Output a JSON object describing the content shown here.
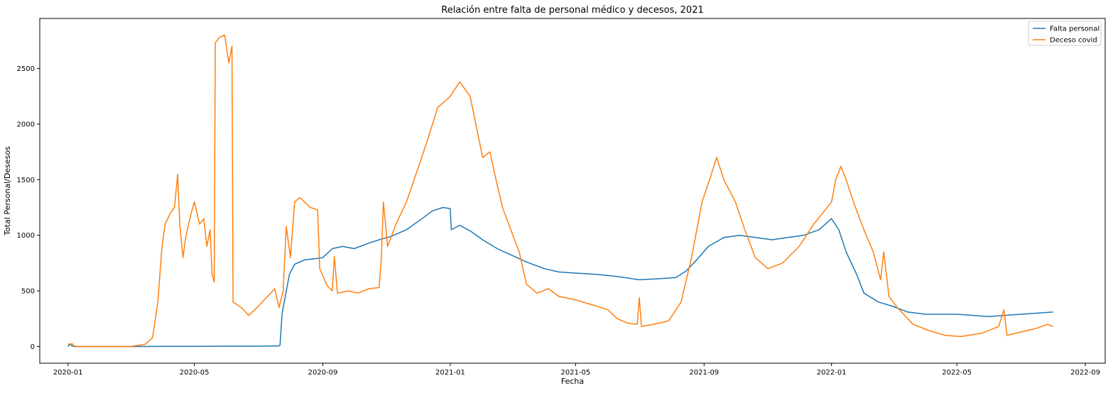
{
  "chart_data": {
    "type": "line",
    "title": "Relación entre falta de personal médico y decesos, 2021",
    "xlabel": "Fecha",
    "ylabel": "Total Personal/Desesos",
    "xlim": [
      "2019-12-05",
      "2022-09-20"
    ],
    "ylim": [
      -150,
      2950
    ],
    "x_ticks": [
      "2020-01-01",
      "2020-05-01",
      "2020-09-01",
      "2021-01-01",
      "2021-05-01",
      "2021-09-01",
      "2022-01-01",
      "2022-05-01",
      "2022-09-01"
    ],
    "x_tick_labels": [
      "2020-01",
      "2020-05",
      "2020-09",
      "2021-01",
      "2021-05",
      "2021-09",
      "2022-01",
      "2022-05",
      "2022-09"
    ],
    "y_ticks": [
      0,
      500,
      1000,
      1500,
      2000,
      2500
    ],
    "legend_position": "top-right",
    "grid": false,
    "series": [
      {
        "name": "Falta personal",
        "color": "#1f77b4",
        "points": [
          [
            "2020-01-01",
            0
          ],
          [
            "2020-01-03",
            20
          ],
          [
            "2020-01-05",
            5
          ],
          [
            "2020-01-08",
            0
          ],
          [
            "2020-02-01",
            0
          ],
          [
            "2020-03-01",
            0
          ],
          [
            "2020-04-01",
            2
          ],
          [
            "2020-05-01",
            2
          ],
          [
            "2020-06-01",
            3
          ],
          [
            "2020-07-01",
            3
          ],
          [
            "2020-07-20",
            5
          ],
          [
            "2020-07-22",
            10
          ],
          [
            "2020-07-24",
            300
          ],
          [
            "2020-07-27",
            450
          ],
          [
            "2020-07-31",
            650
          ],
          [
            "2020-08-05",
            740
          ],
          [
            "2020-08-15",
            780
          ],
          [
            "2020-08-25",
            790
          ],
          [
            "2020-09-01",
            800
          ],
          [
            "2020-09-10",
            880
          ],
          [
            "2020-09-20",
            900
          ],
          [
            "2020-10-01",
            880
          ],
          [
            "2020-10-15",
            930
          ],
          [
            "2020-10-25",
            960
          ],
          [
            "2020-11-05",
            990
          ],
          [
            "2020-11-20",
            1050
          ],
          [
            "2020-12-05",
            1150
          ],
          [
            "2020-12-15",
            1220
          ],
          [
            "2020-12-25",
            1250
          ],
          [
            "2021-01-01",
            1240
          ],
          [
            "2021-01-02",
            1050
          ],
          [
            "2021-01-10",
            1090
          ],
          [
            "2021-01-20",
            1040
          ],
          [
            "2021-02-01",
            960
          ],
          [
            "2021-02-15",
            880
          ],
          [
            "2021-03-01",
            820
          ],
          [
            "2021-03-15",
            760
          ],
          [
            "2021-04-01",
            700
          ],
          [
            "2021-04-15",
            670
          ],
          [
            "2021-05-01",
            660
          ],
          [
            "2021-05-20",
            650
          ],
          [
            "2021-06-10",
            630
          ],
          [
            "2021-07-01",
            600
          ],
          [
            "2021-07-20",
            610
          ],
          [
            "2021-08-05",
            620
          ],
          [
            "2021-08-15",
            680
          ],
          [
            "2021-08-25",
            780
          ],
          [
            "2021-09-05",
            900
          ],
          [
            "2021-09-20",
            980
          ],
          [
            "2021-10-05",
            1000
          ],
          [
            "2021-10-20",
            980
          ],
          [
            "2021-11-05",
            960
          ],
          [
            "2021-11-20",
            980
          ],
          [
            "2021-12-05",
            1000
          ],
          [
            "2021-12-20",
            1050
          ],
          [
            "2022-01-01",
            1150
          ],
          [
            "2022-01-08",
            1050
          ],
          [
            "2022-01-15",
            850
          ],
          [
            "2022-01-25",
            650
          ],
          [
            "2022-02-01",
            480
          ],
          [
            "2022-02-15",
            400
          ],
          [
            "2022-03-01",
            360
          ],
          [
            "2022-03-15",
            310
          ],
          [
            "2022-04-01",
            290
          ],
          [
            "2022-05-01",
            290
          ],
          [
            "2022-06-01",
            270
          ],
          [
            "2022-07-01",
            290
          ],
          [
            "2022-08-01",
            310
          ]
        ]
      },
      {
        "name": "Deceso covid",
        "color": "#ff7f0e",
        "points": [
          [
            "2020-01-01",
            20
          ],
          [
            "2020-01-05",
            25
          ],
          [
            "2020-01-07",
            5
          ],
          [
            "2020-01-10",
            0
          ],
          [
            "2020-02-01",
            0
          ],
          [
            "2020-03-01",
            0
          ],
          [
            "2020-03-15",
            20
          ],
          [
            "2020-03-22",
            80
          ],
          [
            "2020-03-27",
            400
          ],
          [
            "2020-03-31",
            900
          ],
          [
            "2020-04-03",
            1100
          ],
          [
            "2020-04-08",
            1200
          ],
          [
            "2020-04-12",
            1250
          ],
          [
            "2020-04-15",
            1550
          ],
          [
            "2020-04-17",
            1100
          ],
          [
            "2020-04-20",
            800
          ],
          [
            "2020-04-23",
            1000
          ],
          [
            "2020-04-28",
            1200
          ],
          [
            "2020-05-01",
            1300
          ],
          [
            "2020-05-06",
            1100
          ],
          [
            "2020-05-10",
            1150
          ],
          [
            "2020-05-13",
            900
          ],
          [
            "2020-05-16",
            1050
          ],
          [
            "2020-05-18",
            650
          ],
          [
            "2020-05-20",
            580
          ],
          [
            "2020-05-21",
            2730
          ],
          [
            "2020-05-25",
            2780
          ],
          [
            "2020-05-30",
            2800
          ],
          [
            "2020-06-03",
            2550
          ],
          [
            "2020-06-06",
            2700
          ],
          [
            "2020-06-07",
            400
          ],
          [
            "2020-06-15",
            350
          ],
          [
            "2020-06-22",
            280
          ],
          [
            "2020-06-30",
            350
          ],
          [
            "2020-07-10",
            450
          ],
          [
            "2020-07-17",
            520
          ],
          [
            "2020-07-21",
            350
          ],
          [
            "2020-07-25",
            500
          ],
          [
            "2020-07-28",
            1080
          ],
          [
            "2020-08-01",
            800
          ],
          [
            "2020-08-05",
            1300
          ],
          [
            "2020-08-10",
            1340
          ],
          [
            "2020-08-20",
            1250
          ],
          [
            "2020-08-27",
            1230
          ],
          [
            "2020-08-29",
            700
          ],
          [
            "2020-09-05",
            550
          ],
          [
            "2020-09-10",
            500
          ],
          [
            "2020-09-12",
            810
          ],
          [
            "2020-09-15",
            480
          ],
          [
            "2020-09-25",
            500
          ],
          [
            "2020-10-05",
            480
          ],
          [
            "2020-10-15",
            520
          ],
          [
            "2020-10-25",
            530
          ],
          [
            "2020-10-27",
            800
          ],
          [
            "2020-10-29",
            1300
          ],
          [
            "2020-11-02",
            900
          ],
          [
            "2020-11-10",
            1100
          ],
          [
            "2020-11-20",
            1300
          ],
          [
            "2020-12-01",
            1600
          ],
          [
            "2020-12-10",
            1850
          ],
          [
            "2020-12-20",
            2150
          ],
          [
            "2021-01-01",
            2250
          ],
          [
            "2021-01-10",
            2380
          ],
          [
            "2021-01-20",
            2250
          ],
          [
            "2021-02-01",
            1700
          ],
          [
            "2021-02-08",
            1750
          ],
          [
            "2021-02-15",
            1450
          ],
          [
            "2021-02-20",
            1250
          ],
          [
            "2021-02-28",
            1050
          ],
          [
            "2021-03-08",
            850
          ],
          [
            "2021-03-15",
            560
          ],
          [
            "2021-03-25",
            480
          ],
          [
            "2021-04-05",
            520
          ],
          [
            "2021-04-15",
            450
          ],
          [
            "2021-05-01",
            420
          ],
          [
            "2021-05-15",
            380
          ],
          [
            "2021-06-01",
            330
          ],
          [
            "2021-06-10",
            250
          ],
          [
            "2021-06-20",
            210
          ],
          [
            "2021-06-29",
            200
          ],
          [
            "2021-07-01",
            440
          ],
          [
            "2021-07-03",
            180
          ],
          [
            "2021-07-15",
            200
          ],
          [
            "2021-07-29",
            230
          ],
          [
            "2021-08-10",
            400
          ],
          [
            "2021-08-20",
            800
          ],
          [
            "2021-08-30",
            1300
          ],
          [
            "2021-09-08",
            1550
          ],
          [
            "2021-09-13",
            1700
          ],
          [
            "2021-09-20",
            1500
          ],
          [
            "2021-10-01",
            1300
          ],
          [
            "2021-10-10",
            1050
          ],
          [
            "2021-10-20",
            800
          ],
          [
            "2021-11-01",
            700
          ],
          [
            "2021-11-15",
            750
          ],
          [
            "2021-12-01",
            900
          ],
          [
            "2021-12-15",
            1100
          ],
          [
            "2022-01-01",
            1300
          ],
          [
            "2022-01-05",
            1500
          ],
          [
            "2022-01-10",
            1620
          ],
          [
            "2022-01-15",
            1500
          ],
          [
            "2022-01-22",
            1300
          ],
          [
            "2022-02-01",
            1050
          ],
          [
            "2022-02-10",
            850
          ],
          [
            "2022-02-17",
            600
          ],
          [
            "2022-02-20",
            850
          ],
          [
            "2022-02-25",
            450
          ],
          [
            "2022-03-05",
            350
          ],
          [
            "2022-03-20",
            200
          ],
          [
            "2022-04-05",
            140
          ],
          [
            "2022-04-20",
            100
          ],
          [
            "2022-05-05",
            90
          ],
          [
            "2022-05-25",
            120
          ],
          [
            "2022-06-10",
            180
          ],
          [
            "2022-06-15",
            330
          ],
          [
            "2022-06-18",
            100
          ],
          [
            "2022-07-01",
            130
          ],
          [
            "2022-07-15",
            160
          ],
          [
            "2022-07-27",
            200
          ],
          [
            "2022-08-01",
            180
          ]
        ]
      }
    ]
  }
}
